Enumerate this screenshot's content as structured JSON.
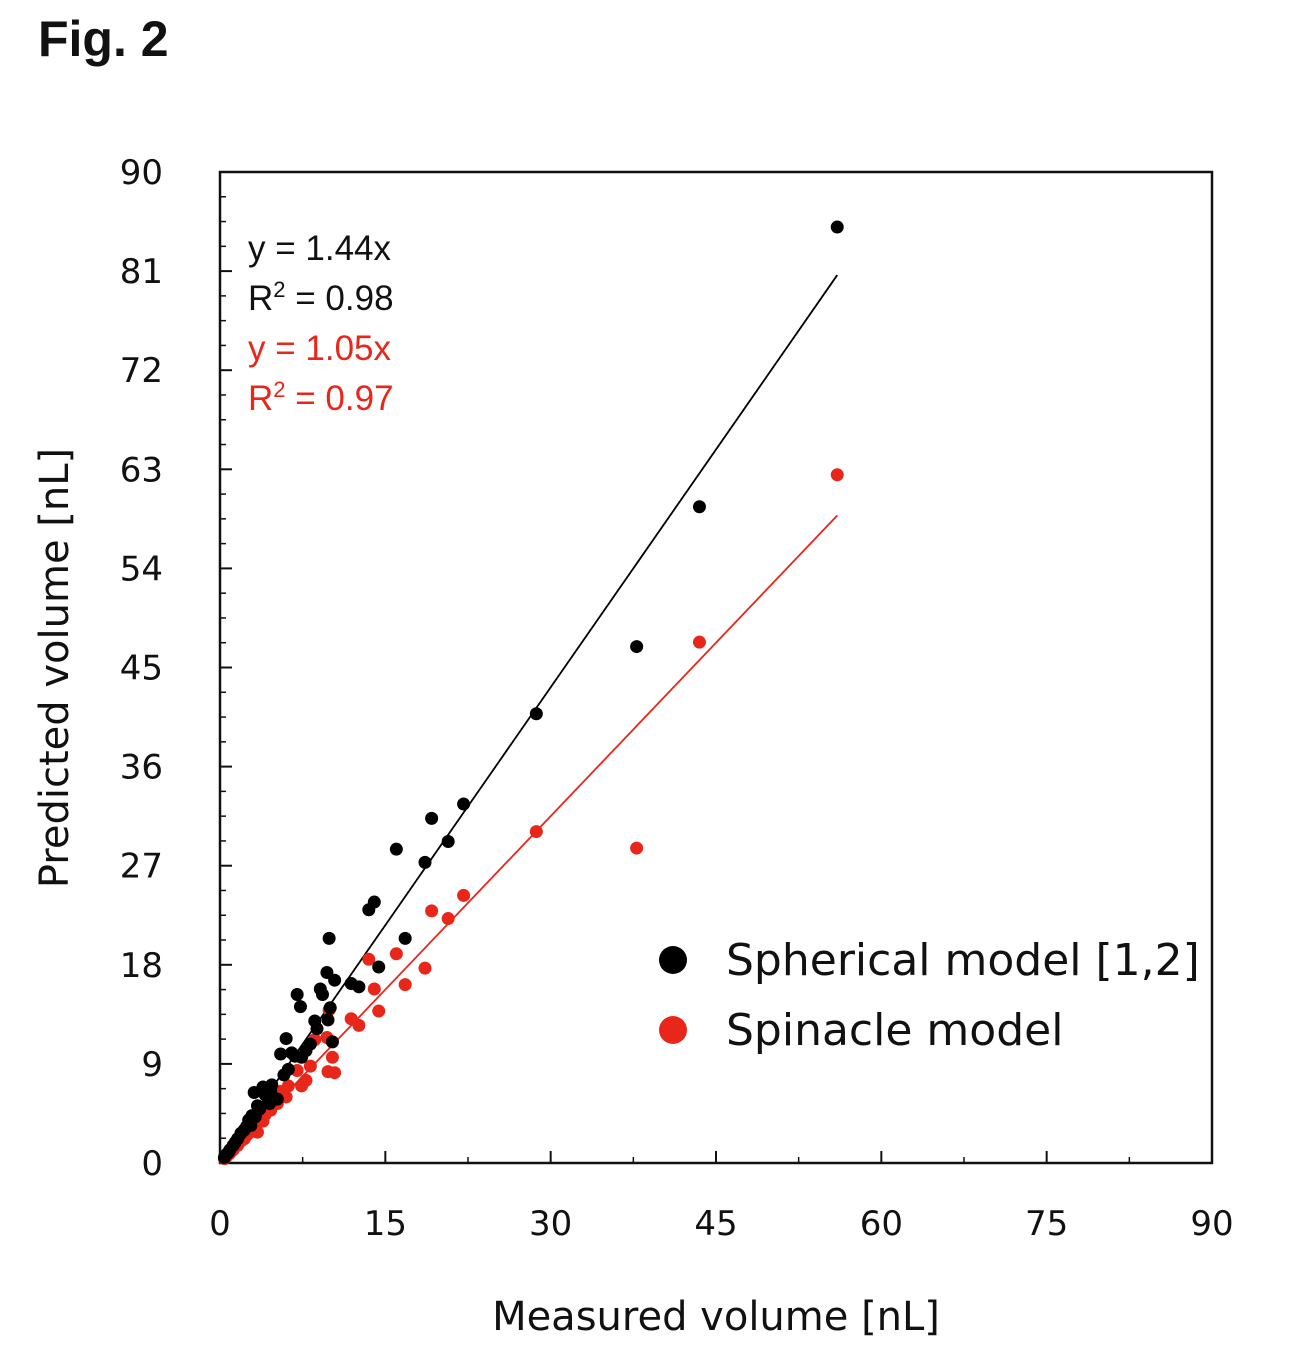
{
  "figure": {
    "label": "Fig. 2"
  },
  "chart_data": {
    "type": "scatter",
    "xlabel": "Measured volume [nL]",
    "ylabel": "Predicted volume [nL]",
    "xlim": [
      0,
      90
    ],
    "ylim": [
      0,
      90
    ],
    "xticks": [
      0,
      15,
      30,
      45,
      60,
      75,
      90
    ],
    "yticks": [
      0,
      9,
      18,
      27,
      36,
      45,
      54,
      63,
      72,
      81,
      90
    ],
    "legend_position": "lower-right",
    "annotations": {
      "black_eq": "y = 1.44x",
      "black_r2_prefix": "R",
      "black_r2_sup": "2",
      "black_r2_value": " = 0.98",
      "red_eq": "y = 1.05x",
      "red_r2_prefix": "R",
      "red_r2_sup": "2",
      "red_r2_value": " = 0.97"
    },
    "series": [
      {
        "name": "Spherical model [1,2]",
        "color": "#000000",
        "fit_slope": 1.44,
        "fit_x_range": [
          0,
          56
        ],
        "points": [
          [
            56,
            85.0
          ],
          [
            43.5,
            59.6
          ],
          [
            37.8,
            46.9
          ],
          [
            28.7,
            40.8
          ],
          [
            22.1,
            32.6
          ],
          [
            20.7,
            29.2
          ],
          [
            19.2,
            31.3
          ],
          [
            18.6,
            27.3
          ],
          [
            16.0,
            28.5
          ],
          [
            16.8,
            20.4
          ],
          [
            14.4,
            17.8
          ],
          [
            14.0,
            23.7
          ],
          [
            13.5,
            23.0
          ],
          [
            12.6,
            16.0
          ],
          [
            11.9,
            16.3
          ],
          [
            10.4,
            16.6
          ],
          [
            9.9,
            20.4
          ],
          [
            9.7,
            17.3
          ],
          [
            9.1,
            15.8
          ],
          [
            9.3,
            15.3
          ],
          [
            9.8,
            13.0
          ],
          [
            10.2,
            11.0
          ],
          [
            8.6,
            12.9
          ],
          [
            7.8,
            10.2
          ],
          [
            7.0,
            15.3
          ],
          [
            7.3,
            14.2
          ],
          [
            6.0,
            11.3
          ],
          [
            5.5,
            9.9
          ],
          [
            6.5,
            10.0
          ],
          [
            6.2,
            8.5
          ],
          [
            4.7,
            7.1
          ],
          [
            3.9,
            6.9
          ],
          [
            3.1,
            6.4
          ],
          [
            4.1,
            6.2
          ],
          [
            5.2,
            5.8
          ],
          [
            4.5,
            5.4
          ],
          [
            3.4,
            5.2
          ],
          [
            3.2,
            4.2
          ],
          [
            2.6,
            3.9
          ],
          [
            2.8,
            3.4
          ],
          [
            2.2,
            3.0
          ],
          [
            1.6,
            2.2
          ],
          [
            1.2,
            1.6
          ],
          [
            0.9,
            1.2
          ],
          [
            0.6,
            0.8
          ],
          [
            8.2,
            10.8
          ],
          [
            7.4,
            9.6
          ],
          [
            5.8,
            8.0
          ],
          [
            4.6,
            6.5
          ],
          [
            3.6,
            4.9
          ],
          [
            2.4,
            3.3
          ],
          [
            1.9,
            2.7
          ],
          [
            1.4,
            1.9
          ],
          [
            0.8,
            1.0
          ],
          [
            0.4,
            0.5
          ],
          [
            2.9,
            4.3
          ],
          [
            6.8,
            9.7
          ],
          [
            8.8,
            12.2
          ],
          [
            10.0,
            14.1
          ]
        ]
      },
      {
        "name": "Spinacle model",
        "color": "#e8261a",
        "fit_slope": 1.05,
        "fit_x_range": [
          0,
          56
        ],
        "points": [
          [
            56,
            62.5
          ],
          [
            43.5,
            47.3
          ],
          [
            37.8,
            28.6
          ],
          [
            28.7,
            30.1
          ],
          [
            22.1,
            24.3
          ],
          [
            20.7,
            22.2
          ],
          [
            19.2,
            22.9
          ],
          [
            18.6,
            17.7
          ],
          [
            16.0,
            19.0
          ],
          [
            16.8,
            16.2
          ],
          [
            14.4,
            13.8
          ],
          [
            14.0,
            15.8
          ],
          [
            13.5,
            18.5
          ],
          [
            12.6,
            12.5
          ],
          [
            11.9,
            13.1
          ],
          [
            10.4,
            8.2
          ],
          [
            9.9,
            13.9
          ],
          [
            9.7,
            11.4
          ],
          [
            10.2,
            9.6
          ],
          [
            9.8,
            8.3
          ],
          [
            8.6,
            11.2
          ],
          [
            7.8,
            7.5
          ],
          [
            7.0,
            8.4
          ],
          [
            6.2,
            7.0
          ],
          [
            5.5,
            6.5
          ],
          [
            6.0,
            6.0
          ],
          [
            5.2,
            5.4
          ],
          [
            4.7,
            5.2
          ],
          [
            4.1,
            4.4
          ],
          [
            3.9,
            3.8
          ],
          [
            3.1,
            3.3
          ],
          [
            3.4,
            2.8
          ],
          [
            2.6,
            2.7
          ],
          [
            2.2,
            2.2
          ],
          [
            1.6,
            1.6
          ],
          [
            1.2,
            1.2
          ],
          [
            0.9,
            0.9
          ],
          [
            0.6,
            0.6
          ],
          [
            8.2,
            8.8
          ],
          [
            7.4,
            7.0
          ],
          [
            5.8,
            6.2
          ],
          [
            4.6,
            4.8
          ],
          [
            3.6,
            3.9
          ],
          [
            2.4,
            2.5
          ],
          [
            1.9,
            2.0
          ],
          [
            1.4,
            1.5
          ],
          [
            0.8,
            0.8
          ],
          [
            0.4,
            0.4
          ]
        ]
      }
    ]
  }
}
